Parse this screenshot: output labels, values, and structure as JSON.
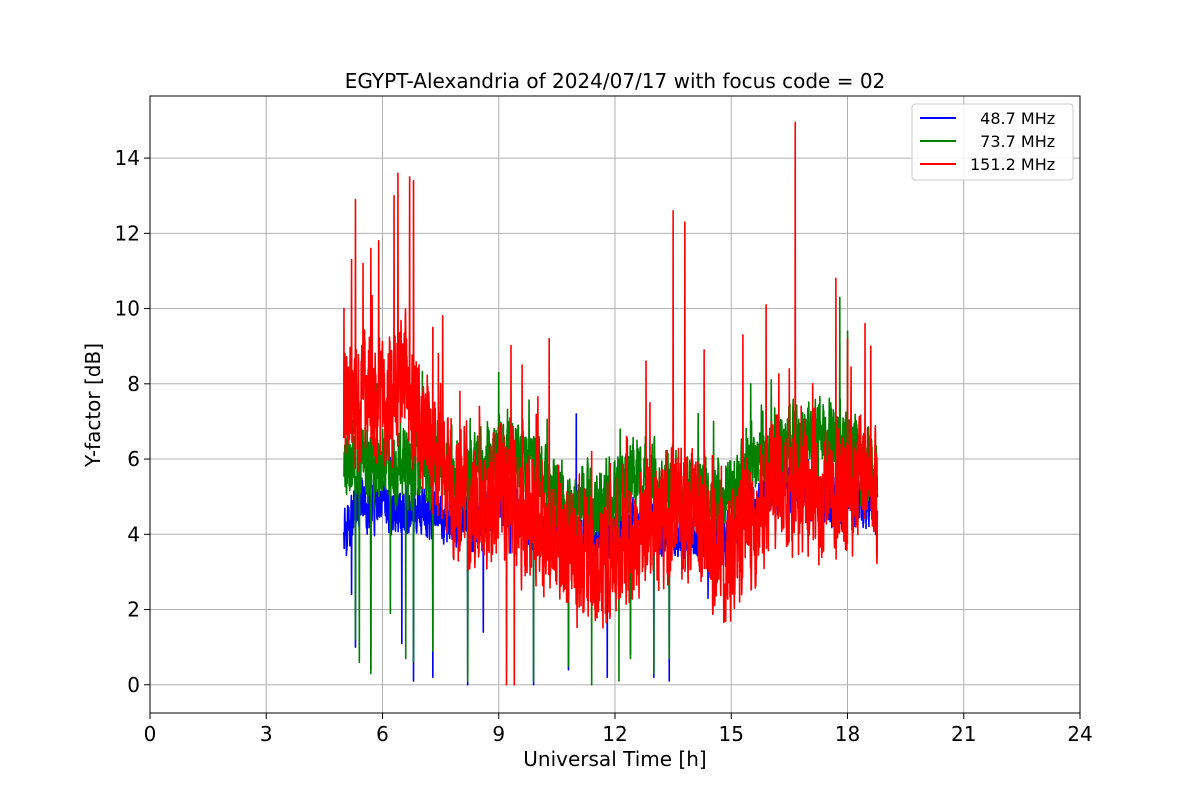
{
  "chart_data": {
    "type": "line",
    "title": "EGYPT-Alexandria of 2024/07/17 with focus code = 02",
    "xlabel": "Universal Time [h]",
    "ylabel": "Y-factor [dB]",
    "xlim": [
      0,
      24
    ],
    "ylim": [
      -0.75,
      15.65
    ],
    "xticks": [
      0,
      3,
      6,
      9,
      12,
      15,
      18,
      21,
      24
    ],
    "yticks": [
      0,
      2,
      4,
      6,
      8,
      10,
      12,
      14
    ],
    "grid": true,
    "legend_position": "top-right",
    "x_start": 5.0,
    "x_end": 18.77,
    "series": [
      {
        "name": "  48.7 MHz",
        "color": "#0000ff",
        "trend": [
          [
            5.0,
            4.3
          ],
          [
            5.5,
            4.8
          ],
          [
            6.0,
            4.6
          ],
          [
            6.5,
            4.7
          ],
          [
            7.0,
            4.5
          ],
          [
            7.5,
            4.5
          ],
          [
            8.0,
            4.3
          ],
          [
            8.5,
            4.2
          ],
          [
            9.0,
            4.8
          ],
          [
            9.5,
            4.5
          ],
          [
            10.0,
            4.2
          ],
          [
            10.5,
            3.9
          ],
          [
            11.0,
            3.8
          ],
          [
            11.5,
            3.9
          ],
          [
            12.0,
            4.1
          ],
          [
            12.5,
            4.2
          ],
          [
            13.0,
            4.2
          ],
          [
            13.5,
            4.0
          ],
          [
            14.0,
            3.9
          ],
          [
            14.5,
            3.8
          ],
          [
            15.0,
            4.0
          ],
          [
            15.5,
            4.8
          ],
          [
            16.0,
            5.2
          ],
          [
            16.5,
            5.3
          ],
          [
            17.0,
            5.2
          ],
          [
            17.5,
            4.9
          ],
          [
            18.0,
            4.8
          ],
          [
            18.5,
            4.9
          ],
          [
            18.77,
            4.8
          ]
        ],
        "noise": 0.7,
        "spikes": [
          [
            5.2,
            2.4
          ],
          [
            5.3,
            1.0
          ],
          [
            5.7,
            0.4
          ],
          [
            6.5,
            1.1
          ],
          [
            6.8,
            0.1
          ],
          [
            7.3,
            0.2
          ],
          [
            8.2,
            0.0
          ],
          [
            8.6,
            1.4
          ],
          [
            9.9,
            0.0
          ],
          [
            10.8,
            0.4
          ],
          [
            11.0,
            7.2
          ],
          [
            11.8,
            0.2
          ],
          [
            12.4,
            0.8
          ],
          [
            13.0,
            0.2
          ],
          [
            13.4,
            0.1
          ],
          [
            14.4,
            2.3
          ]
        ]
      },
      {
        "name": "  73.7 MHz",
        "color": "#008000",
        "trend": [
          [
            5.0,
            5.8
          ],
          [
            5.5,
            6.0
          ],
          [
            6.0,
            5.9
          ],
          [
            6.5,
            5.8
          ],
          [
            7.0,
            5.9
          ],
          [
            7.5,
            6.0
          ],
          [
            8.0,
            5.2
          ],
          [
            8.5,
            5.7
          ],
          [
            9.0,
            6.1
          ],
          [
            9.5,
            6.2
          ],
          [
            10.0,
            5.7
          ],
          [
            10.5,
            4.9
          ],
          [
            11.0,
            4.6
          ],
          [
            11.5,
            4.8
          ],
          [
            12.0,
            5.1
          ],
          [
            12.5,
            5.5
          ],
          [
            13.0,
            5.3
          ],
          [
            13.5,
            5.2
          ],
          [
            14.0,
            5.1
          ],
          [
            14.5,
            5.0
          ],
          [
            15.0,
            5.0
          ],
          [
            15.5,
            5.7
          ],
          [
            16.0,
            6.2
          ],
          [
            16.5,
            6.4
          ],
          [
            17.0,
            6.4
          ],
          [
            17.5,
            6.6
          ],
          [
            18.0,
            6.3
          ],
          [
            18.5,
            5.8
          ],
          [
            18.77,
            5.6
          ]
        ],
        "noise": 1.1,
        "spikes": [
          [
            5.3,
            1.2
          ],
          [
            5.4,
            0.6
          ],
          [
            5.7,
            0.3
          ],
          [
            6.2,
            1.9
          ],
          [
            6.6,
            0.7
          ],
          [
            6.8,
            0.6
          ],
          [
            7.3,
            0.9
          ],
          [
            8.2,
            0.1
          ],
          [
            9.0,
            8.3
          ],
          [
            9.9,
            0.1
          ],
          [
            10.8,
            0.5
          ],
          [
            11.4,
            0.0
          ],
          [
            12.1,
            0.1
          ],
          [
            12.4,
            0.7
          ],
          [
            13.0,
            0.3
          ],
          [
            13.4,
            0.7
          ],
          [
            15.5,
            8.0
          ],
          [
            17.8,
            10.3
          ],
          [
            18.0,
            9.4
          ]
        ]
      },
      {
        "name": "151.2 MHz",
        "color": "#ff0000",
        "trend": [
          [
            5.0,
            6.8
          ],
          [
            5.5,
            7.6
          ],
          [
            6.0,
            7.5
          ],
          [
            6.5,
            8.1
          ],
          [
            7.0,
            6.8
          ],
          [
            7.5,
            5.8
          ],
          [
            8.0,
            5.1
          ],
          [
            8.5,
            4.8
          ],
          [
            9.0,
            5.0
          ],
          [
            9.5,
            4.7
          ],
          [
            10.0,
            4.4
          ],
          [
            10.5,
            4.0
          ],
          [
            11.0,
            3.2
          ],
          [
            11.5,
            3.3
          ],
          [
            12.0,
            3.6
          ],
          [
            12.5,
            4.1
          ],
          [
            13.0,
            4.4
          ],
          [
            13.5,
            4.5
          ],
          [
            14.0,
            4.7
          ],
          [
            14.5,
            3.6
          ],
          [
            15.0,
            3.2
          ],
          [
            15.5,
            4.0
          ],
          [
            16.0,
            5.0
          ],
          [
            16.5,
            5.3
          ],
          [
            17.0,
            5.1
          ],
          [
            17.5,
            4.9
          ],
          [
            18.0,
            5.2
          ],
          [
            18.5,
            5.4
          ],
          [
            18.77,
            5.2
          ]
        ],
        "noise": 1.8,
        "spikes": [
          [
            5.0,
            10.0
          ],
          [
            5.2,
            11.3
          ],
          [
            5.3,
            12.9
          ],
          [
            5.5,
            11.2
          ],
          [
            5.7,
            11.6
          ],
          [
            5.9,
            11.8
          ],
          [
            6.3,
            13.0
          ],
          [
            6.4,
            13.6
          ],
          [
            6.7,
            13.5
          ],
          [
            6.8,
            13.4
          ],
          [
            7.3,
            9.5
          ],
          [
            7.5,
            8.0
          ],
          [
            8.0,
            7.8
          ],
          [
            8.5,
            7.4
          ],
          [
            9.2,
            0.0
          ],
          [
            9.4,
            0.0
          ],
          [
            9.6,
            8.5
          ],
          [
            10.3,
            9.2
          ],
          [
            11.4,
            6.2
          ],
          [
            12.3,
            6.6
          ],
          [
            12.8,
            8.6
          ],
          [
            13.5,
            12.6
          ],
          [
            13.8,
            12.3
          ],
          [
            14.3,
            8.9
          ],
          [
            15.3,
            9.3
          ],
          [
            15.9,
            10.1
          ],
          [
            16.5,
            8.4
          ],
          [
            16.65,
            14.95
          ],
          [
            17.1,
            8.0
          ],
          [
            17.7,
            10.8
          ],
          [
            18.0,
            9.2
          ],
          [
            18.45,
            9.6
          ],
          [
            18.6,
            9.0
          ]
        ]
      }
    ]
  }
}
